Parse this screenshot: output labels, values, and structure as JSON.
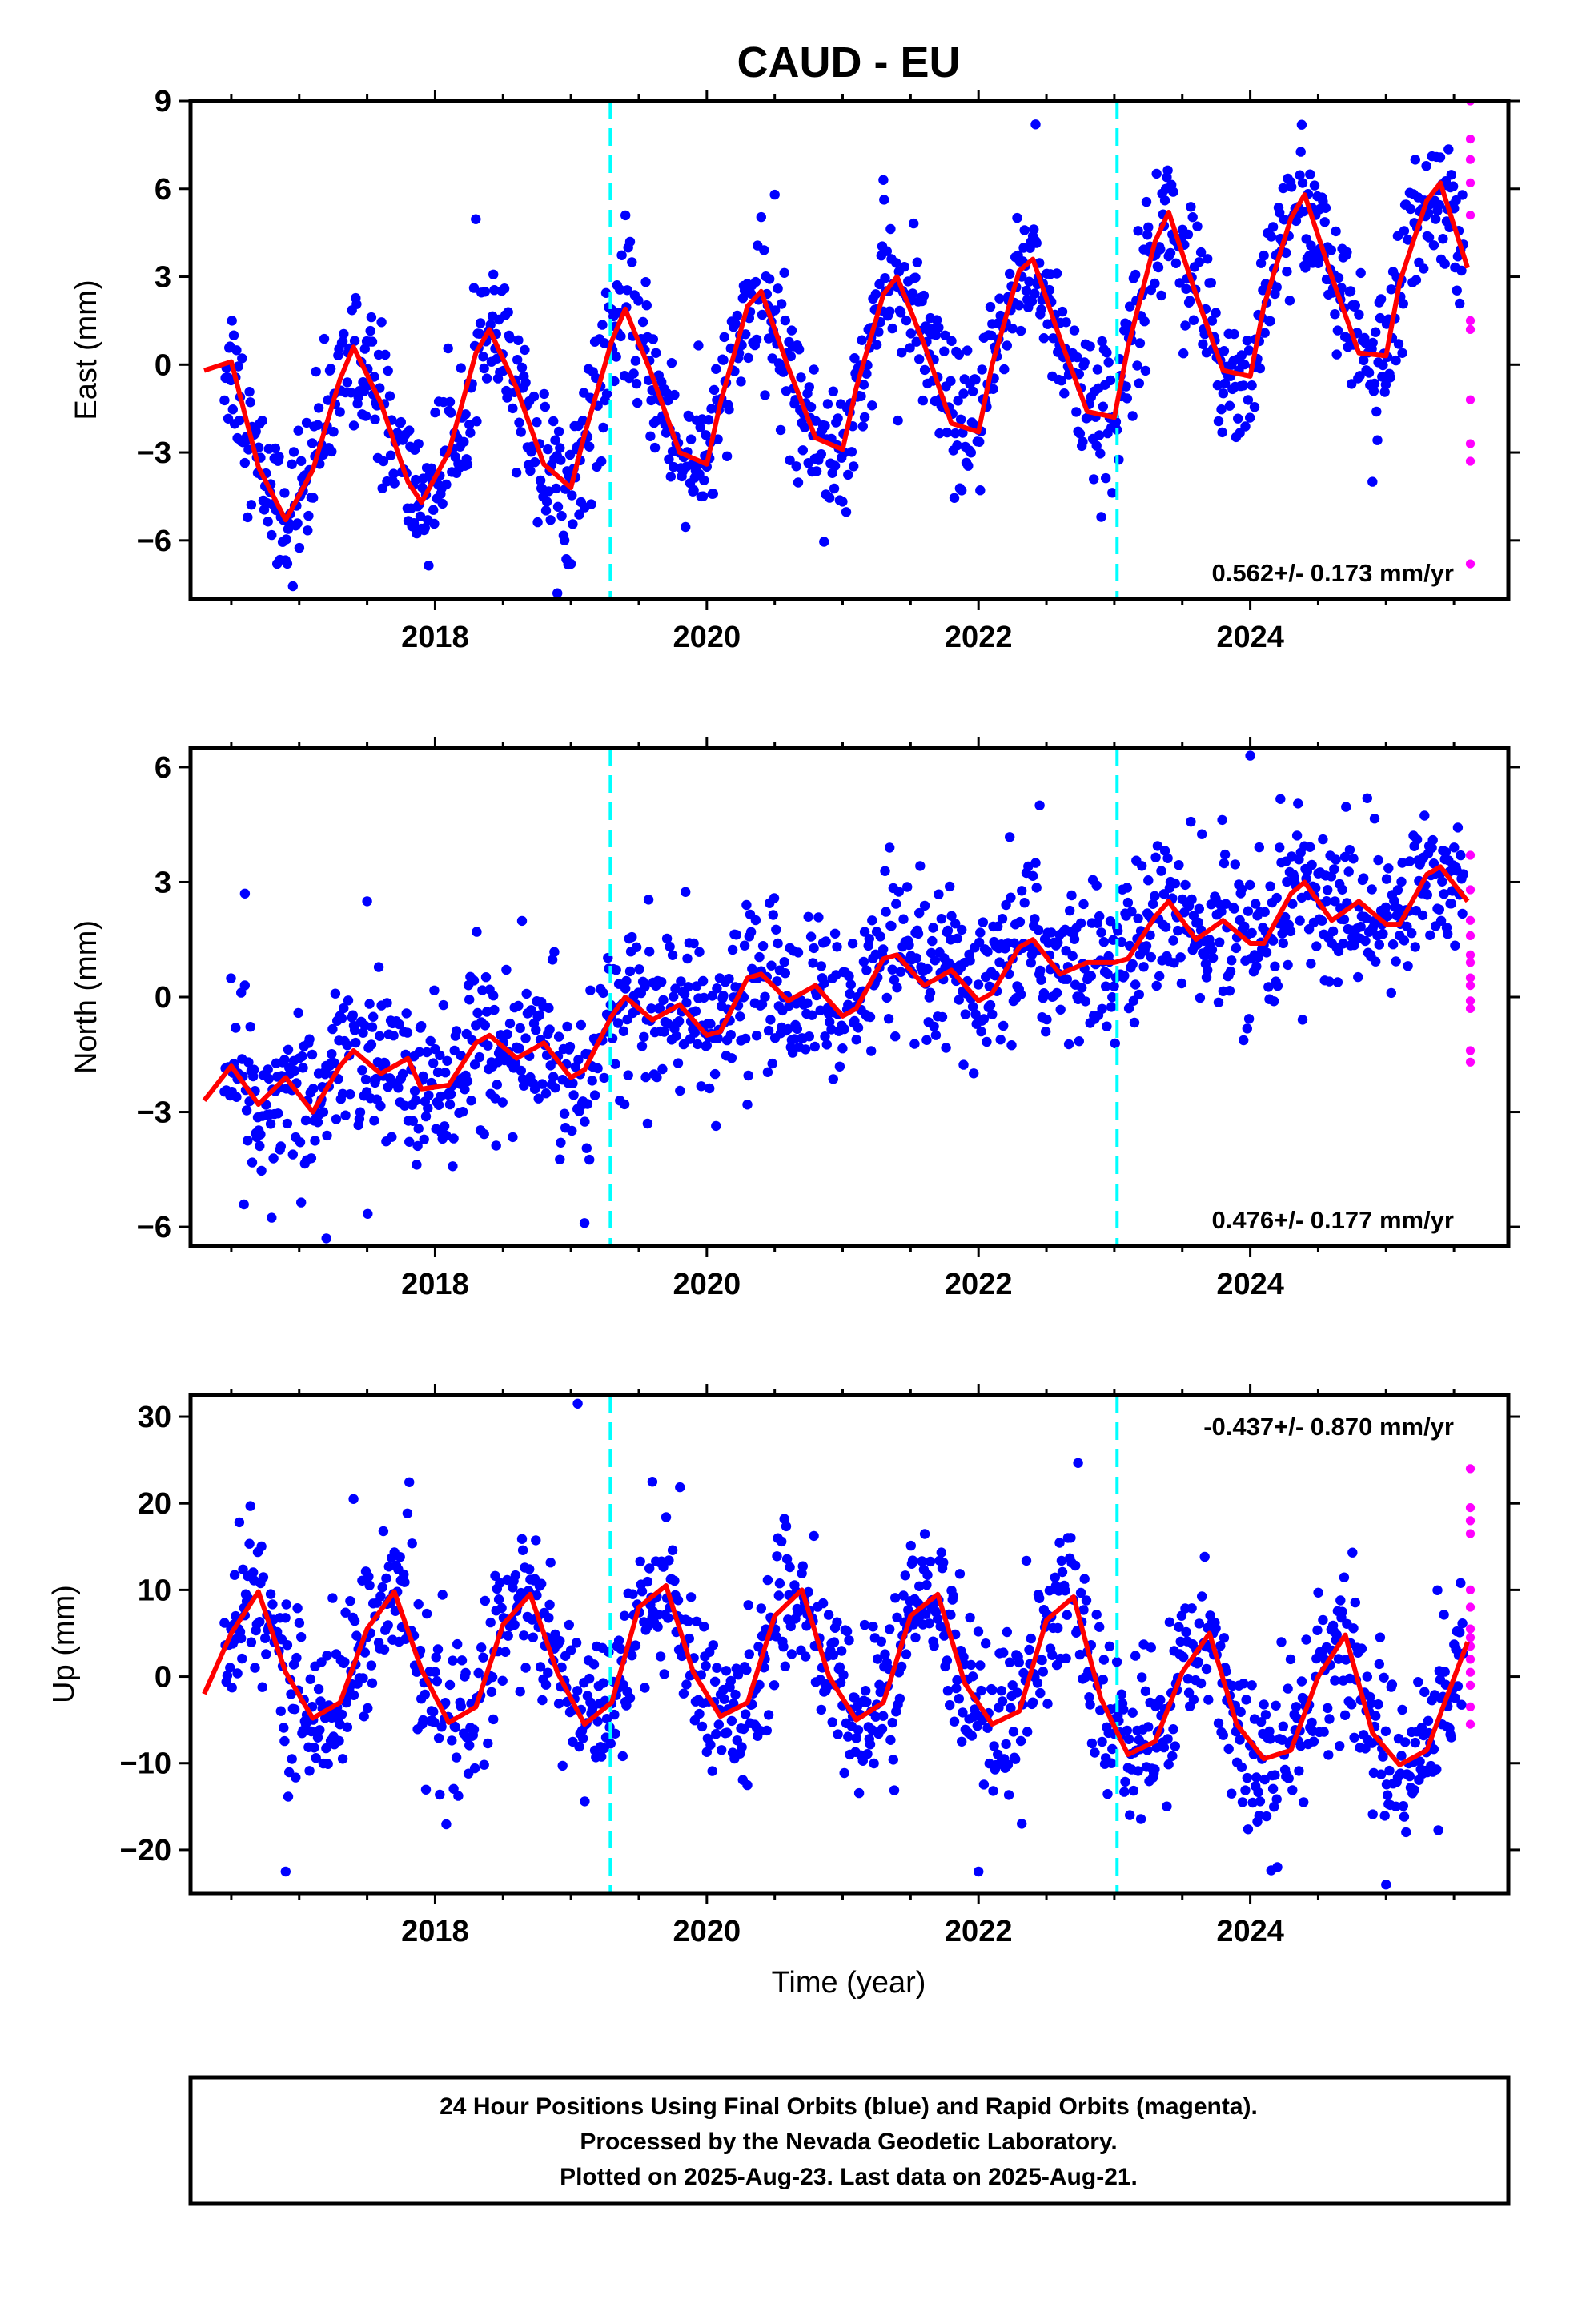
{
  "title": "CAUD - EU",
  "caption": {
    "line1": "24 Hour Positions Using Final Orbits (blue) and Rapid Orbits (magenta).",
    "line2": "Processed by the Nevada Geodetic Laboratory.",
    "line3": "Plotted on 2025-Aug-23. Last data on 2025-Aug-21."
  },
  "colors": {
    "final": "#0000ff",
    "rapid": "#ff00ff",
    "model": "#ff0000",
    "steps": "#00ffff",
    "frame": "#000000"
  },
  "xaxis": {
    "label": "Time (year)",
    "range": [
      2016.2,
      2025.9
    ],
    "ticks": [
      2018,
      2020,
      2022,
      2024
    ],
    "minor_step": 0.5
  },
  "chart_data": [
    {
      "type": "scatter",
      "component": "East",
      "ylabel": "East (mm)",
      "xlim": [
        2016.2,
        2025.9
      ],
      "ylim": [
        -8.0,
        9.0
      ],
      "yticks": [
        -6,
        -3,
        0,
        3,
        6,
        9
      ],
      "rate_text": "0.562+/- 0.173 mm/yr",
      "rate_position": "bottom-right",
      "step_lines": [
        2019.29,
        2023.02
      ],
      "model": {
        "name": "model fit",
        "x": [
          2016.3,
          2016.5,
          2016.7,
          2016.9,
          2017.1,
          2017.3,
          2017.4,
          2017.6,
          2017.8,
          2017.9,
          2018.1,
          2018.3,
          2018.4,
          2018.6,
          2018.8,
          2019.0,
          2019.1,
          2019.3,
          2019.4,
          2019.6,
          2019.8,
          2020.0,
          2020.1,
          2020.3,
          2020.4,
          2020.6,
          2020.8,
          2021.0,
          2021.1,
          2021.3,
          2021.4,
          2021.6,
          2021.8,
          2022.0,
          2022.1,
          2022.3,
          2022.4,
          2022.6,
          2022.8,
          2023.0,
          2023.1,
          2023.3,
          2023.4,
          2023.6,
          2023.8,
          2024.0,
          2024.1,
          2024.3,
          2024.4,
          2024.6,
          2024.8,
          2025.0,
          2025.1,
          2025.3,
          2025.4,
          2025.6
        ],
        "y": [
          -0.2,
          0.1,
          -3.5,
          -5.3,
          -3.6,
          -0.5,
          0.6,
          -1.3,
          -4.0,
          -4.7,
          -3.0,
          0.4,
          1.2,
          -0.8,
          -3.4,
          -4.2,
          -2.4,
          0.8,
          1.9,
          -0.4,
          -3.0,
          -3.4,
          -1.3,
          2.0,
          2.5,
          -0.1,
          -2.5,
          -2.9,
          -0.8,
          2.4,
          3.0,
          0.7,
          -2.0,
          -2.3,
          0.0,
          3.2,
          3.6,
          0.9,
          -1.6,
          -1.8,
          0.6,
          4.2,
          5.2,
          2.4,
          -0.2,
          -0.4,
          2.0,
          5.0,
          5.8,
          3.0,
          0.4,
          0.3,
          2.8,
          5.6,
          6.2,
          3.3
        ]
      },
      "final_orbits": {
        "name": "Final Orbits",
        "noise_mm": 1.2,
        "outliers": [
          [
            2018.9,
            -7.8
          ],
          [
            2022.42,
            8.2
          ],
          [
            2024.9,
            -4.0
          ],
          [
            2020.5,
            5.8
          ],
          [
            2021.3,
            6.3
          ],
          [
            2019.0,
            -6.8
          ]
        ]
      },
      "rapid_orbits": {
        "name": "Rapid Orbits",
        "x": [
          2025.62,
          2025.62,
          2025.62,
          2025.62,
          2025.62,
          2025.62,
          2025.62,
          2025.62,
          2025.62,
          2025.62,
          2025.62
        ],
        "y": [
          9.0,
          7.7,
          7.0,
          6.2,
          5.1,
          1.5,
          1.2,
          -1.2,
          -2.7,
          -3.3,
          -6.8
        ]
      }
    },
    {
      "type": "scatter",
      "component": "North",
      "ylabel": "North (mm)",
      "xlim": [
        2016.2,
        2025.9
      ],
      "ylim": [
        -6.5,
        6.5
      ],
      "yticks": [
        -6,
        -3,
        0,
        3,
        6
      ],
      "rate_text": "0.476+/- 0.177 mm/yr",
      "rate_position": "bottom-right",
      "step_lines": [
        2019.29,
        2023.02
      ],
      "model": {
        "name": "model fit",
        "x": [
          2016.3,
          2016.5,
          2016.7,
          2016.9,
          2017.1,
          2017.3,
          2017.4,
          2017.6,
          2017.8,
          2017.9,
          2018.1,
          2018.3,
          2018.4,
          2018.6,
          2018.8,
          2019.0,
          2019.1,
          2019.3,
          2019.4,
          2019.6,
          2019.8,
          2020.0,
          2020.1,
          2020.3,
          2020.4,
          2020.6,
          2020.8,
          2021.0,
          2021.1,
          2021.3,
          2021.4,
          2021.6,
          2021.8,
          2022.0,
          2022.1,
          2022.3,
          2022.4,
          2022.6,
          2022.8,
          2023.0,
          2023.1,
          2023.3,
          2023.4,
          2023.6,
          2023.8,
          2024.0,
          2024.1,
          2024.3,
          2024.4,
          2024.6,
          2024.8,
          2025.0,
          2025.1,
          2025.3,
          2025.4,
          2025.6
        ],
        "y": [
          -2.7,
          -1.8,
          -2.8,
          -2.1,
          -3.0,
          -1.8,
          -1.4,
          -2.0,
          -1.6,
          -2.4,
          -2.3,
          -1.2,
          -1.0,
          -1.6,
          -1.2,
          -2.1,
          -1.9,
          -0.5,
          0.0,
          -0.6,
          -0.2,
          -1.0,
          -0.9,
          0.5,
          0.6,
          -0.1,
          0.3,
          -0.5,
          -0.3,
          1.0,
          1.1,
          0.3,
          0.7,
          -0.1,
          0.1,
          1.3,
          1.5,
          0.6,
          0.9,
          0.9,
          1.0,
          2.1,
          2.5,
          1.5,
          2.0,
          1.4,
          1.4,
          2.7,
          3.0,
          2.0,
          2.5,
          1.9,
          1.9,
          3.2,
          3.4,
          2.5
        ]
      },
      "final_orbits": {
        "name": "Final Orbits",
        "noise_mm": 1.05,
        "outliers": [
          [
            2019.1,
            -5.9
          ],
          [
            2017.2,
            -6.3
          ],
          [
            2024.0,
            6.3
          ],
          [
            2022.45,
            5.0
          ],
          [
            2016.6,
            2.7
          ],
          [
            2017.5,
            2.5
          ]
        ]
      },
      "rapid_orbits": {
        "name": "Rapid Orbits",
        "x": [
          2025.62,
          2025.62,
          2025.62,
          2025.62,
          2025.62,
          2025.62,
          2025.62,
          2025.62,
          2025.62,
          2025.62,
          2025.62,
          2025.62
        ],
        "y": [
          3.7,
          2.8,
          2.0,
          1.6,
          1.1,
          0.9,
          0.5,
          0.3,
          -0.1,
          -0.3,
          -1.4,
          -1.7
        ]
      }
    },
    {
      "type": "scatter",
      "component": "Up",
      "ylabel": "Up (mm)",
      "xlabel": "Time (year)",
      "xlim": [
        2016.2,
        2025.9
      ],
      "ylim": [
        -25.0,
        32.5
      ],
      "yticks": [
        -20,
        -10,
        0,
        10,
        20,
        30
      ],
      "rate_text": "-0.437+/- 0.870 mm/yr",
      "rate_position": "top-right",
      "step_lines": [
        2019.29,
        2023.02
      ],
      "model": {
        "name": "model fit",
        "x": [
          2016.3,
          2016.5,
          2016.7,
          2016.9,
          2017.1,
          2017.3,
          2017.5,
          2017.7,
          2017.9,
          2018.1,
          2018.3,
          2018.5,
          2018.7,
          2018.9,
          2019.1,
          2019.3,
          2019.5,
          2019.7,
          2019.9,
          2020.1,
          2020.3,
          2020.5,
          2020.7,
          2020.9,
          2021.1,
          2021.3,
          2021.5,
          2021.7,
          2021.9,
          2022.1,
          2022.3,
          2022.5,
          2022.7,
          2022.9,
          2023.1,
          2023.3,
          2023.5,
          2023.7,
          2023.9,
          2024.1,
          2024.3,
          2024.5,
          2024.7,
          2024.9,
          2025.1,
          2025.3,
          2025.6
        ],
        "y": [
          -2.0,
          5.0,
          9.8,
          0.5,
          -4.8,
          -3.0,
          5.5,
          9.8,
          0.8,
          -5.3,
          -3.5,
          6.0,
          9.5,
          0.5,
          -5.5,
          -3.0,
          8.0,
          10.5,
          0.5,
          -4.6,
          -3.0,
          7.0,
          10.0,
          0.0,
          -5.0,
          -3.0,
          7.0,
          9.5,
          -0.8,
          -5.5,
          -4.0,
          6.5,
          9.2,
          -2.5,
          -9.0,
          -7.5,
          0.5,
          5.0,
          -5.5,
          -9.5,
          -8.5,
          0.0,
          4.8,
          -6.5,
          -10.2,
          -8.5,
          4.0
        ]
      },
      "final_orbits": {
        "name": "Final Orbits",
        "noise_mm": 4.6,
        "outliers": [
          [
            2019.05,
            31.5
          ],
          [
            2016.9,
            -22.5
          ],
          [
            2024.2,
            -22.0
          ],
          [
            2025.0,
            -24.0
          ],
          [
            2022.0,
            -22.5
          ],
          [
            2019.6,
            22.5
          ],
          [
            2017.4,
            20.5
          ]
        ]
      },
      "rapid_orbits": {
        "name": "Rapid Orbits",
        "x": [
          2025.62,
          2025.62,
          2025.62,
          2025.62,
          2025.62,
          2025.62,
          2025.62,
          2025.62,
          2025.62,
          2025.62,
          2025.62,
          2025.62,
          2025.62,
          2025.62
        ],
        "y": [
          24.0,
          19.5,
          18.0,
          16.5,
          10.0,
          8.0,
          5.5,
          4.5,
          3.5,
          2.0,
          0.5,
          -1.0,
          -3.5,
          -5.5
        ]
      }
    }
  ]
}
